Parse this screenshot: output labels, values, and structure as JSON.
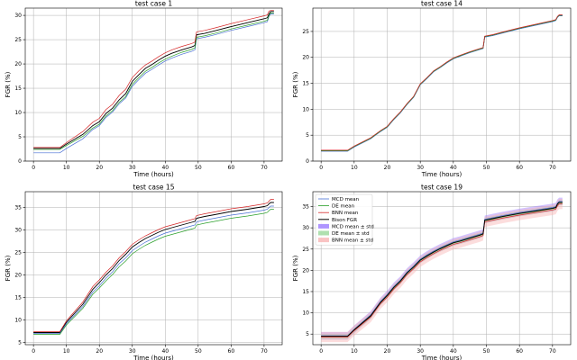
{
  "chart_data": [
    {
      "type": "line",
      "title": "test case 1",
      "xlabel": "Time (hours)",
      "ylabel": "FGR (%)",
      "xlim": [
        -2.5,
        75.5
      ],
      "ylim": [
        0,
        31.5
      ],
      "xticks": [
        0,
        10,
        20,
        30,
        40,
        50,
        60,
        70
      ],
      "yticks": [
        0,
        5,
        10,
        15,
        20,
        25,
        30
      ],
      "x": [
        0,
        8,
        10,
        15,
        18,
        20,
        22,
        24,
        26,
        28,
        30,
        32,
        34,
        36,
        38,
        40,
        42,
        45,
        48,
        49,
        49.5,
        52,
        55,
        60,
        65,
        70,
        71,
        71.5,
        72,
        73
      ],
      "series": [
        {
          "name": "Bison FGR",
          "values": [
            2.6,
            2.6,
            3.5,
            5.5,
            7.3,
            8.1,
            9.8,
            10.9,
            12.6,
            13.9,
            16.4,
            17.8,
            19.1,
            19.9,
            20.8,
            21.6,
            22.2,
            22.9,
            23.5,
            23.8,
            26.0,
            26.3,
            26.8,
            27.7,
            28.5,
            29.3,
            29.5,
            30.3,
            30.8,
            30.8
          ],
          "color": "#000000"
        },
        {
          "name": "MCD mean",
          "values": [
            1.7,
            1.7,
            2.6,
            4.6,
            6.5,
            7.3,
            9.0,
            10.1,
            11.8,
            13.0,
            15.4,
            16.8,
            18.1,
            18.9,
            19.8,
            20.6,
            21.2,
            22.0,
            22.6,
            22.9,
            25.2,
            25.5,
            26.0,
            26.9,
            27.7,
            28.5,
            28.7,
            29.8,
            30.3,
            30.3
          ],
          "color": "#4a6fd4"
        },
        {
          "name": "DE mean",
          "values": [
            2.4,
            2.4,
            3.2,
            5.1,
            6.8,
            7.6,
            9.3,
            10.4,
            12.1,
            13.3,
            15.8,
            17.2,
            18.5,
            19.3,
            20.2,
            21.0,
            21.6,
            22.4,
            23.0,
            23.3,
            25.5,
            25.8,
            26.3,
            27.2,
            28.0,
            28.8,
            29.0,
            30.0,
            30.5,
            30.5
          ],
          "color": "#2ca02c"
        },
        {
          "name": "BNN mean",
          "values": [
            2.8,
            2.8,
            3.8,
            6.1,
            8.0,
            8.8,
            10.6,
            11.7,
            13.5,
            14.8,
            17.2,
            18.6,
            19.8,
            20.6,
            21.5,
            22.3,
            22.9,
            23.6,
            24.2,
            24.5,
            26.6,
            26.9,
            27.4,
            28.3,
            29.1,
            29.9,
            30.1,
            30.9,
            31.0,
            31.0
          ],
          "color": "#d62728"
        }
      ]
    },
    {
      "type": "line",
      "title": "test case 14",
      "xlabel": "Time (hours)",
      "ylabel": "FGR (%)",
      "xlim": [
        -2.5,
        75.5
      ],
      "ylim": [
        0,
        29.5
      ],
      "xticks": [
        0,
        10,
        20,
        30,
        40,
        50,
        60,
        70
      ],
      "yticks": [
        0,
        5,
        10,
        15,
        20,
        25
      ],
      "x": [
        0,
        8,
        10,
        15,
        18,
        20,
        22,
        24,
        26,
        28,
        30,
        32,
        34,
        36,
        38,
        40,
        42,
        45,
        48,
        49,
        49.5,
        52,
        55,
        60,
        65,
        70,
        71,
        71.5,
        72,
        73
      ],
      "series": [
        {
          "name": "Bison FGR",
          "values": [
            2.0,
            2.0,
            2.8,
            4.4,
            5.8,
            6.6,
            8.1,
            9.4,
            11.0,
            12.4,
            14.8,
            16.0,
            17.3,
            18.1,
            19.0,
            19.8,
            20.3,
            21.0,
            21.6,
            21.8,
            24.0,
            24.3,
            24.8,
            25.6,
            26.3,
            27.0,
            27.2,
            27.8,
            28.1,
            28.1
          ],
          "color": "#000000"
        },
        {
          "name": "MCD mean",
          "values": [
            1.9,
            1.9,
            2.7,
            4.3,
            5.7,
            6.5,
            8.0,
            9.3,
            10.9,
            12.3,
            14.7,
            15.9,
            17.2,
            18.0,
            18.9,
            19.7,
            20.2,
            20.9,
            21.5,
            21.7,
            23.9,
            24.2,
            24.7,
            25.5,
            26.2,
            26.9,
            27.1,
            27.7,
            28.0,
            28.0
          ],
          "color": "#4a6fd4"
        },
        {
          "name": "DE mean",
          "values": [
            2.0,
            2.0,
            2.8,
            4.4,
            5.8,
            6.6,
            8.1,
            9.4,
            11.0,
            12.4,
            14.8,
            16.0,
            17.3,
            18.1,
            19.0,
            19.8,
            20.3,
            21.0,
            21.6,
            21.8,
            24.0,
            24.3,
            24.8,
            25.6,
            26.3,
            27.0,
            27.2,
            27.8,
            28.1,
            28.1
          ],
          "color": "#2ca02c"
        },
        {
          "name": "BNN mean",
          "values": [
            2.1,
            2.1,
            2.9,
            4.5,
            5.9,
            6.7,
            8.2,
            9.5,
            11.1,
            12.5,
            14.9,
            16.1,
            17.4,
            18.2,
            19.1,
            19.9,
            20.4,
            21.1,
            21.7,
            21.9,
            24.1,
            24.4,
            24.9,
            25.7,
            26.4,
            27.1,
            27.3,
            27.9,
            28.2,
            28.2
          ],
          "color": "#d62728"
        }
      ]
    },
    {
      "type": "line",
      "title": "test case 15",
      "xlabel": "Time (hours)",
      "ylabel": "FGR (%)",
      "xlim": [
        -2.5,
        75.5
      ],
      "ylim": [
        4.5,
        38.5
      ],
      "xticks": [
        0,
        10,
        20,
        30,
        40,
        50,
        60,
        70
      ],
      "yticks": [
        5,
        10,
        15,
        20,
        25,
        30,
        35
      ],
      "x": [
        0,
        8,
        10,
        15,
        18,
        20,
        22,
        24,
        26,
        28,
        30,
        32,
        34,
        36,
        38,
        40,
        42,
        45,
        48,
        49,
        49.5,
        52,
        55,
        60,
        65,
        70,
        71,
        71.5,
        72,
        73
      ],
      "series": [
        {
          "name": "Bison FGR",
          "values": [
            7.2,
            7.2,
            9.5,
            13.5,
            16.8,
            18.3,
            20.0,
            21.4,
            23.2,
            24.6,
            26.2,
            27.2,
            28.1,
            28.8,
            29.5,
            30.1,
            30.5,
            31.1,
            31.7,
            31.9,
            32.6,
            33.0,
            33.4,
            34.1,
            34.6,
            35.2,
            35.4,
            35.8,
            36.1,
            36.1
          ],
          "color": "#000000"
        },
        {
          "name": "MCD mean",
          "values": [
            7.0,
            7.0,
            9.2,
            13.0,
            16.2,
            17.6,
            19.3,
            20.7,
            22.5,
            23.8,
            25.4,
            26.4,
            27.3,
            28.0,
            28.7,
            29.3,
            29.7,
            30.3,
            30.9,
            31.1,
            31.8,
            32.2,
            32.6,
            33.3,
            33.8,
            34.4,
            34.6,
            35.0,
            35.3,
            35.3
          ],
          "color": "#4a6fd4"
        },
        {
          "name": "DE mean",
          "values": [
            6.8,
            6.8,
            8.9,
            12.6,
            15.7,
            17.1,
            18.7,
            20.1,
            21.8,
            23.1,
            24.7,
            25.7,
            26.6,
            27.3,
            28.0,
            28.6,
            29.0,
            29.6,
            30.2,
            30.4,
            31.1,
            31.5,
            31.9,
            32.6,
            33.1,
            33.7,
            33.9,
            34.3,
            34.6,
            34.6
          ],
          "color": "#2ca02c"
        },
        {
          "name": "BNN mean",
          "values": [
            7.4,
            7.4,
            9.8,
            14.0,
            17.4,
            18.9,
            20.6,
            22.0,
            23.8,
            25.2,
            26.8,
            27.8,
            28.7,
            29.4,
            30.1,
            30.7,
            31.1,
            31.7,
            32.3,
            32.5,
            33.2,
            33.6,
            34.0,
            34.7,
            35.2,
            35.8,
            36.0,
            36.4,
            36.8,
            36.8
          ],
          "color": "#d62728"
        }
      ]
    },
    {
      "type": "line",
      "title": "test case 19",
      "xlabel": "Time (hours)",
      "ylabel": "FGR (%)",
      "xlim": [
        -2.5,
        75.5
      ],
      "ylim": [
        2.5,
        38.5
      ],
      "xticks": [
        0,
        10,
        20,
        30,
        40,
        50,
        60,
        70
      ],
      "yticks": [
        5,
        10,
        15,
        20,
        25,
        30,
        35
      ],
      "x": [
        0,
        8,
        10,
        15,
        18,
        20,
        22,
        24,
        26,
        28,
        30,
        32,
        34,
        36,
        38,
        40,
        42,
        45,
        48,
        49,
        49.5,
        52,
        55,
        60,
        65,
        70,
        71,
        71.5,
        72,
        73
      ],
      "series": [
        {
          "name": "MCD mean",
          "values": [
            4.6,
            4.6,
            6.1,
            9.5,
            12.7,
            14.3,
            16.2,
            17.7,
            19.6,
            21.0,
            22.6,
            23.6,
            24.5,
            25.3,
            26.0,
            26.7,
            27.1,
            27.8,
            28.5,
            28.8,
            32.0,
            32.4,
            32.9,
            33.6,
            34.2,
            34.8,
            35.0,
            35.8,
            36.2,
            36.2
          ],
          "color": "#4a6fd4"
        },
        {
          "name": "DE mean",
          "values": [
            4.4,
            4.4,
            5.9,
            9.2,
            12.4,
            14.0,
            15.9,
            17.4,
            19.3,
            20.7,
            22.3,
            23.3,
            24.2,
            25.0,
            25.7,
            26.4,
            26.8,
            27.5,
            28.2,
            28.5,
            31.7,
            32.1,
            32.6,
            33.3,
            33.9,
            34.5,
            34.7,
            35.5,
            35.9,
            35.9
          ],
          "color": "#2ca02c"
        },
        {
          "name": "BNN mean",
          "values": [
            4.3,
            4.3,
            5.8,
            9.0,
            12.2,
            13.7,
            15.6,
            17.1,
            19.0,
            20.4,
            22.0,
            23.0,
            23.9,
            24.7,
            25.4,
            26.1,
            26.5,
            27.2,
            27.9,
            28.2,
            31.4,
            31.8,
            32.3,
            33.0,
            33.6,
            34.2,
            34.4,
            35.2,
            35.6,
            35.6
          ],
          "color": "#d62728"
        },
        {
          "name": "Bison FGR",
          "values": [
            4.5,
            4.5,
            6.0,
            9.3,
            12.5,
            14.1,
            16.0,
            17.5,
            19.4,
            20.8,
            22.4,
            23.4,
            24.3,
            25.1,
            25.8,
            26.5,
            26.9,
            27.6,
            28.3,
            28.6,
            31.8,
            32.2,
            32.7,
            33.4,
            34.0,
            34.6,
            34.8,
            35.6,
            36.0,
            36.0
          ],
          "color": "#000000"
        }
      ],
      "bands": [
        {
          "name": "MCD mean ± std",
          "of": "MCD mean",
          "std": 0.9,
          "color": "#9b7bff"
        },
        {
          "name": "DE mean ± std",
          "of": "DE mean",
          "std": 0.6,
          "color": "#9bd89b"
        },
        {
          "name": "BNN mean ± std",
          "of": "BNN mean",
          "std": 1.2,
          "color": "#f8b4b4"
        }
      ],
      "legend": {
        "position": "top-left"
      }
    }
  ]
}
